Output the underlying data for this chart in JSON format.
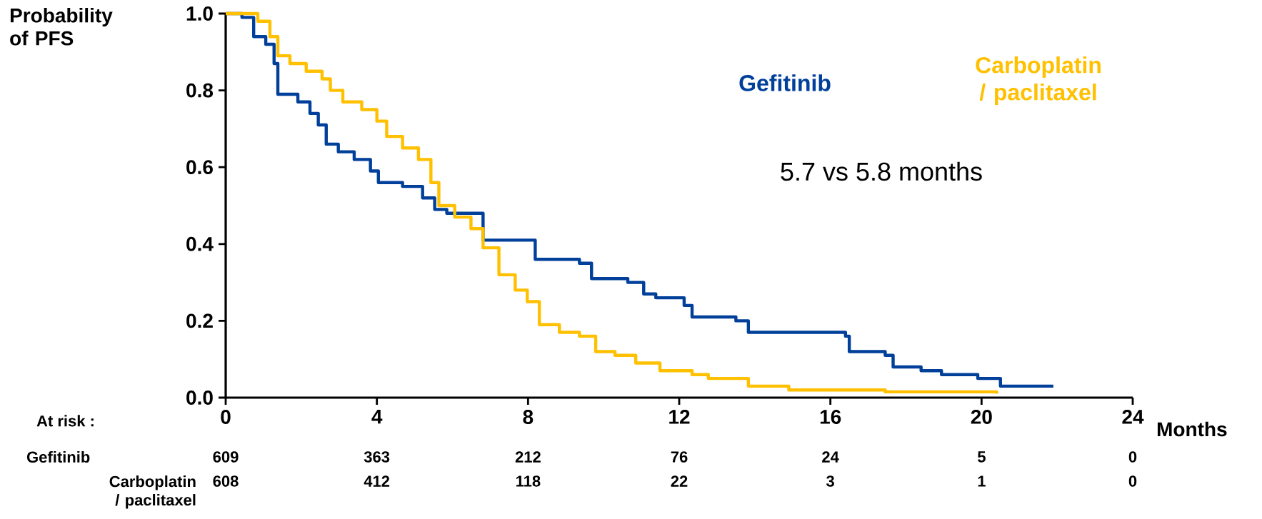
{
  "chart_data": {
    "type": "step",
    "ylabel": "Probability of PFS",
    "xlabel": "Months",
    "xlim": [
      0,
      24
    ],
    "ylim": [
      0,
      1
    ],
    "xticks": [
      0,
      4,
      8,
      12,
      16,
      20,
      24
    ],
    "yticks": [
      {
        "value": 0,
        "label": "0.0"
      },
      {
        "value": 0.2,
        "label": "0.2"
      },
      {
        "value": 0.4,
        "label": "0.4"
      },
      {
        "value": 0.6,
        "label": "0.6"
      },
      {
        "value": 0.8,
        "label": "0.8"
      },
      {
        "value": 1,
        "label": "1.0"
      }
    ],
    "series": [
      {
        "name": "Gefitinib",
        "color": "#003f9a",
        "x": [
          0,
          0.43,
          0.74,
          1.06,
          1.28,
          1.38,
          1.91,
          2.23,
          2.45,
          2.66,
          2.98,
          3.4,
          3.83,
          4.04,
          4.68,
          5.21,
          5.53,
          5.85,
          6.81,
          7.87,
          8.19,
          9.36,
          9.68,
          10.64,
          11.06,
          11.38,
          12.13,
          12.34,
          13.5,
          13.83,
          16.4,
          16.5,
          17.45,
          17.66,
          18.4,
          18.94,
          19.9,
          20.5,
          21.9
        ],
        "values": [
          1.0,
          0.99,
          0.94,
          0.92,
          0.87,
          0.79,
          0.77,
          0.74,
          0.71,
          0.66,
          0.64,
          0.62,
          0.59,
          0.56,
          0.55,
          0.52,
          0.49,
          0.48,
          0.41,
          0.41,
          0.36,
          0.35,
          0.31,
          0.3,
          0.27,
          0.26,
          0.24,
          0.21,
          0.2,
          0.17,
          0.16,
          0.12,
          0.11,
          0.08,
          0.07,
          0.06,
          0.05,
          0.03,
          0.03
        ]
      },
      {
        "name": "Carboplatin / paclitaxel",
        "color": "#ffc000",
        "x": [
          0,
          0.85,
          1.17,
          1.38,
          1.7,
          2.13,
          2.55,
          2.77,
          3.1,
          3.6,
          4.0,
          4.26,
          4.68,
          5.1,
          5.43,
          5.64,
          6.06,
          6.49,
          6.81,
          7.23,
          7.66,
          7.98,
          8.3,
          8.83,
          9.36,
          9.79,
          10.3,
          10.85,
          11.49,
          12.34,
          12.77,
          13.83,
          14.9,
          17.45,
          20.4
        ],
        "values": [
          1.0,
          0.98,
          0.94,
          0.89,
          0.87,
          0.85,
          0.83,
          0.8,
          0.77,
          0.75,
          0.72,
          0.68,
          0.65,
          0.62,
          0.56,
          0.5,
          0.47,
          0.44,
          0.39,
          0.32,
          0.28,
          0.25,
          0.19,
          0.17,
          0.16,
          0.12,
          0.11,
          0.09,
          0.07,
          0.06,
          0.05,
          0.03,
          0.02,
          0.015,
          0.01
        ]
      }
    ],
    "annotations": [
      "5.7 vs 5.8 months",
      "At risk :",
      "Gefitinib",
      "609",
      "363",
      "212",
      "76",
      "24",
      "5",
      "0",
      "Carboplatin / paclitaxel",
      "608",
      "412",
      "118",
      "22",
      "3",
      "1",
      "0"
    ]
  }
}
